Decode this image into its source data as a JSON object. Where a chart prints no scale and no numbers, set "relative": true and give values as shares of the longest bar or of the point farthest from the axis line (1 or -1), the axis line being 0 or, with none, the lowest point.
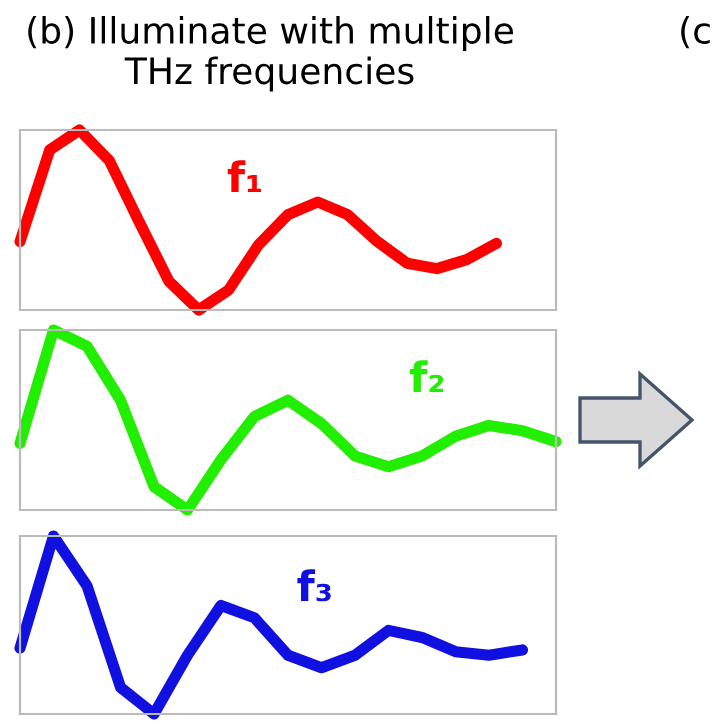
{
  "chart_data": [
    {
      "type": "line",
      "title": "(b) Illuminate with multiple THz frequencies",
      "annotations": [
        "(c"
      ],
      "relative": true,
      "categories": [
        null,
        null,
        null,
        null,
        null,
        null,
        null,
        null,
        null,
        null,
        null,
        null,
        null,
        null,
        null,
        null,
        null,
        null,
        null
      ],
      "series": [
        {
          "name": "f₁",
          "color": "#ff0000",
          "values": [
            0.38,
            0.89,
            1,
            0.83,
            0.49,
            0.16,
            0,
            0.11,
            0.36,
            0.53,
            0.6,
            0.53,
            0.38,
            0.26,
            0.23,
            0.28,
            0.37,
            null,
            null
          ]
        }
      ]
    },
    {
      "type": "line",
      "relative": true,
      "categories": [
        null,
        null,
        null,
        null,
        null,
        null,
        null,
        null,
        null,
        null,
        null,
        null,
        null,
        null,
        null,
        null,
        null
      ],
      "series": [
        {
          "name": "f₂",
          "color": "#22ee00",
          "values": [
            0.37,
            1,
            0.91,
            0.61,
            0.13,
            0,
            0.28,
            0.52,
            0.61,
            0.48,
            0.3,
            0.24,
            0.3,
            0.41,
            0.47,
            0.44,
            0.38
          ]
        }
      ]
    },
    {
      "type": "line",
      "relative": true,
      "categories": [
        null,
        null,
        null,
        null,
        null,
        null,
        null,
        null,
        null,
        null,
        null,
        null,
        null,
        null,
        null,
        null,
        null
      ],
      "series": [
        {
          "name": "f₃",
          "color": "#1010e0",
          "values": [
            0.37,
            1,
            0.72,
            0.15,
            0,
            0.33,
            0.61,
            0.54,
            0.33,
            0.26,
            0.33,
            0.47,
            0.43,
            0.35,
            0.33,
            0.36,
            null
          ]
        }
      ]
    }
  ]
}
